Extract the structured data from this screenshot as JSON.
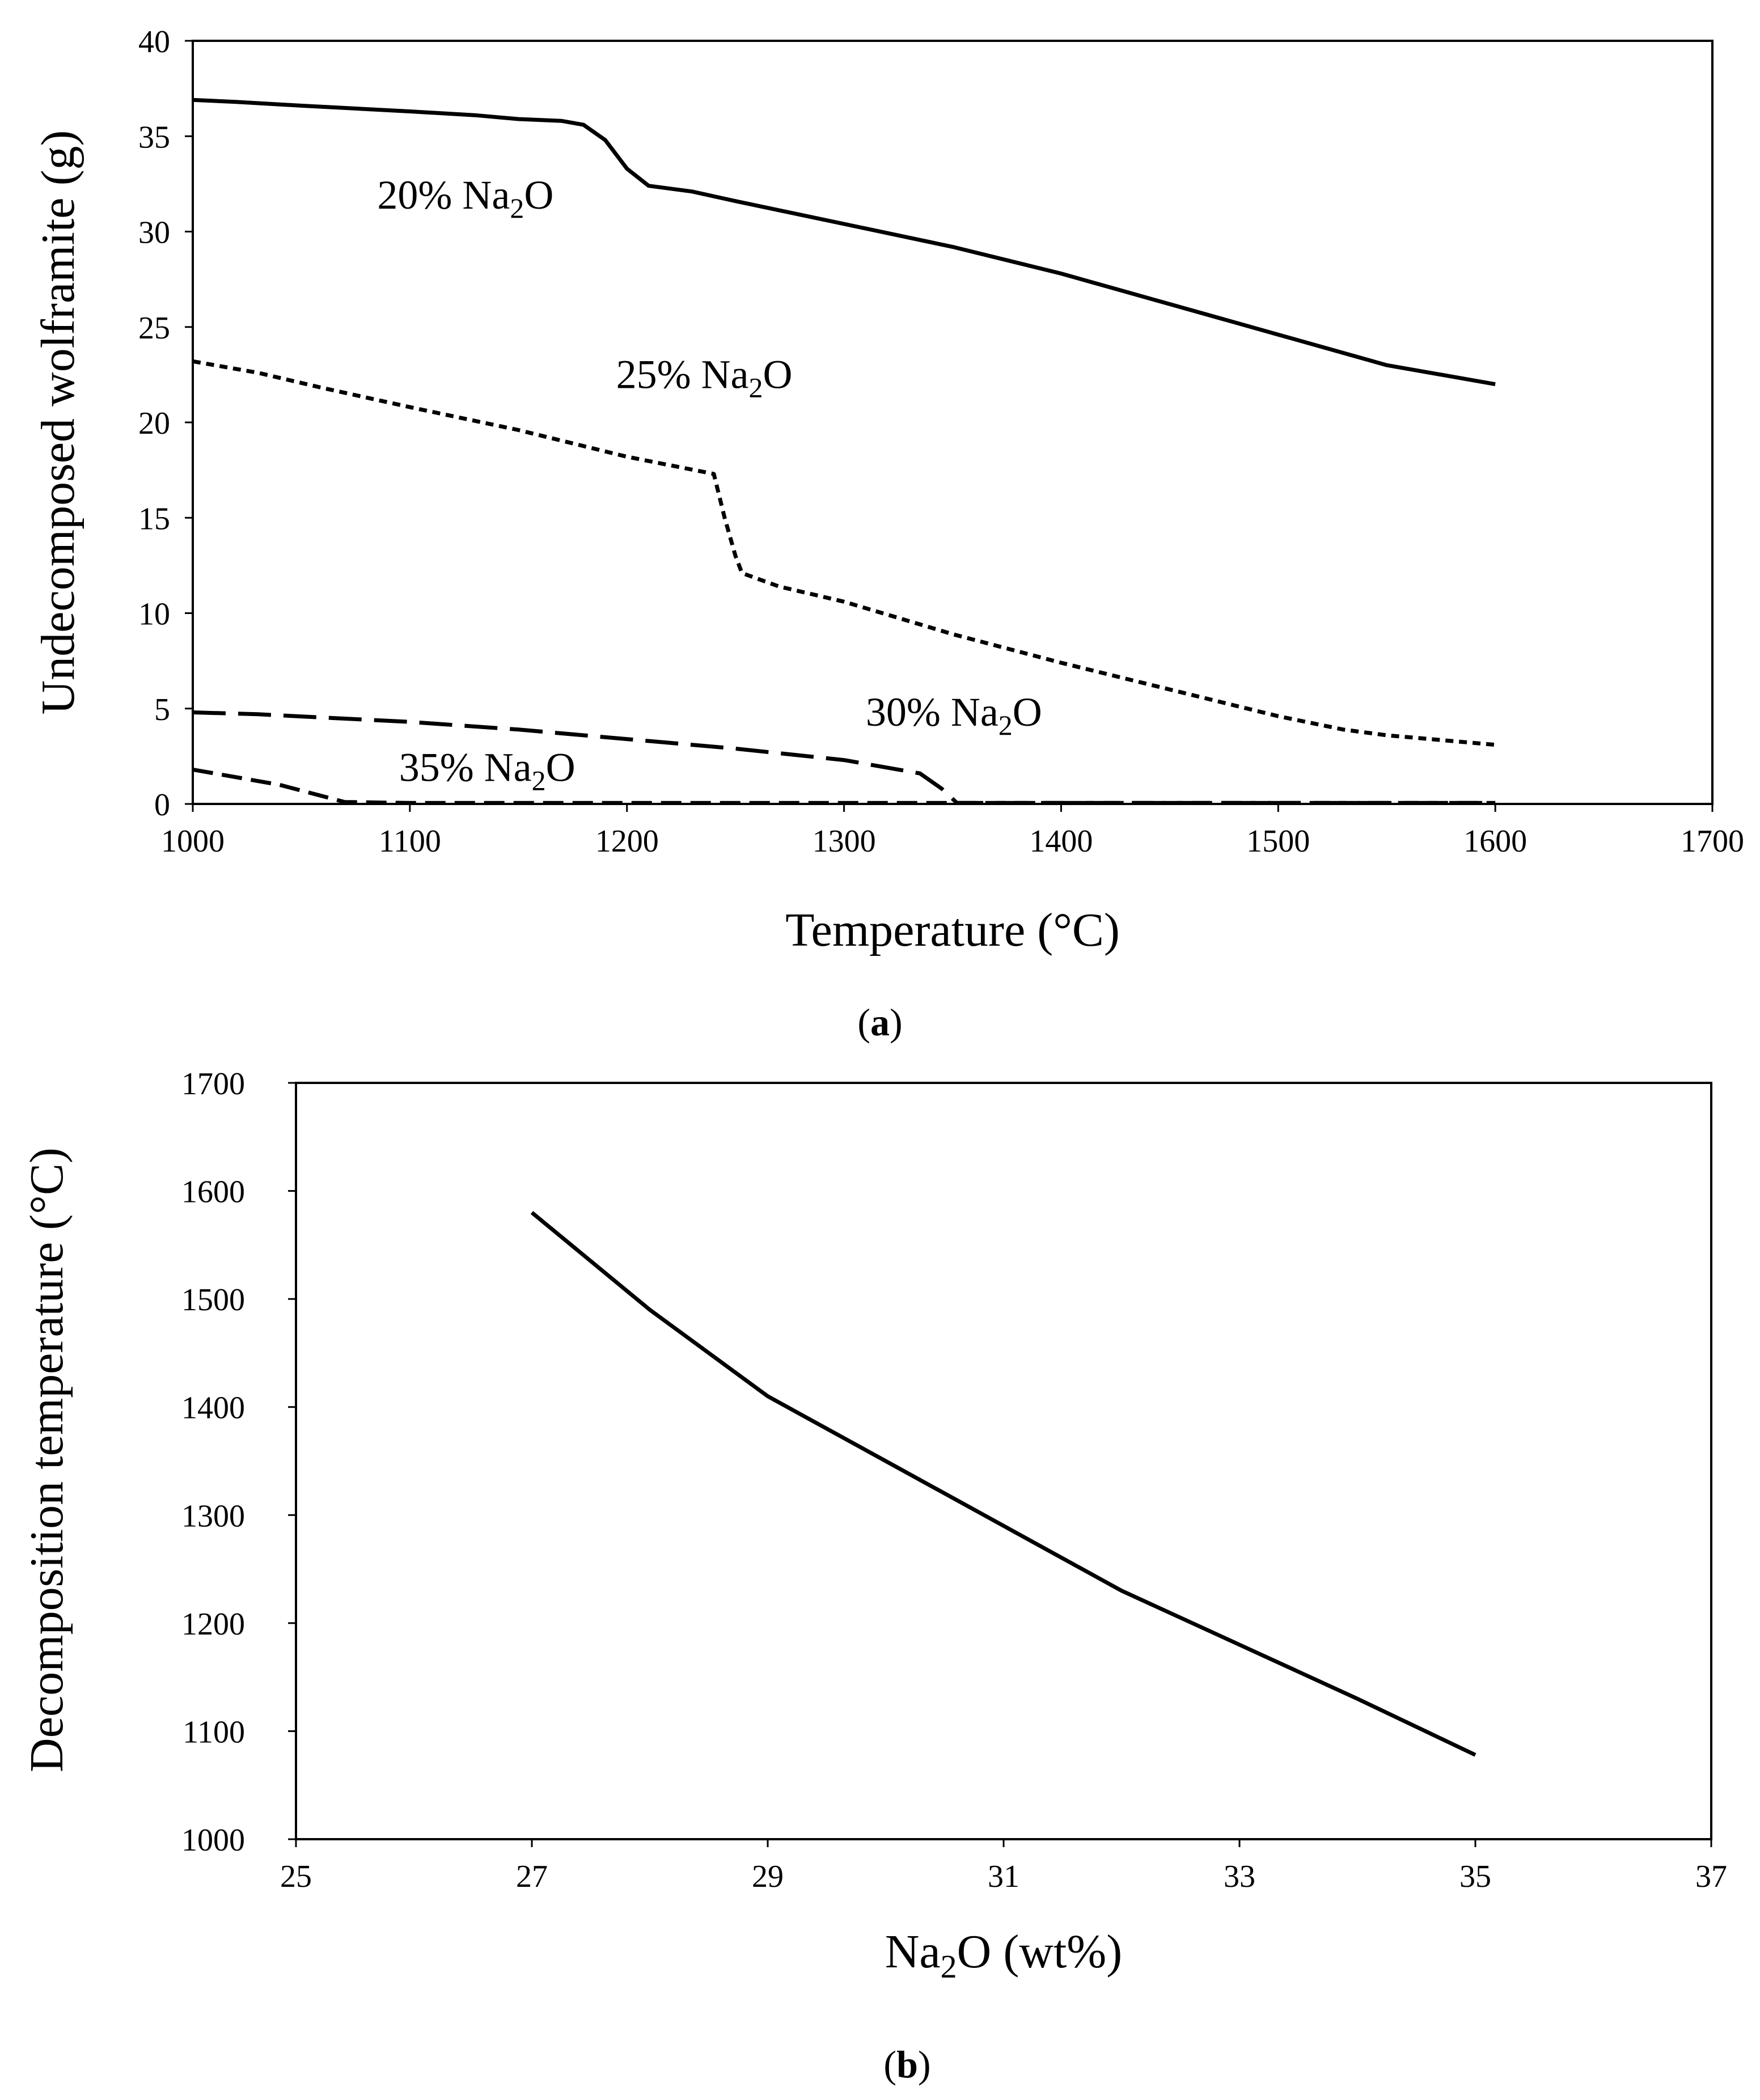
{
  "chart_data": [
    {
      "type": "line",
      "panel": "(a)",
      "panel_letter": "a",
      "title": "",
      "xlabel": "Temperature (°C)",
      "ylabel": "Undecomposed wolframite (g)",
      "xlim": [
        1000,
        1700
      ],
      "ylim": [
        0,
        40
      ],
      "xticks": [
        1000,
        1100,
        1200,
        1300,
        1400,
        1500,
        1600,
        1700
      ],
      "yticks": [
        0,
        5,
        10,
        15,
        20,
        25,
        30,
        35,
        40
      ],
      "grid": false,
      "series": [
        {
          "name": "20% Na2O",
          "label_main": "20% Na",
          "label_sub": "2",
          "label_end": "O",
          "label_at": [
            1085,
            31.2
          ],
          "style": "solid",
          "x": [
            1000,
            1020,
            1050,
            1100,
            1130,
            1150,
            1170,
            1180,
            1190,
            1200,
            1210,
            1230,
            1250,
            1300,
            1350,
            1400,
            1450,
            1500,
            1550,
            1580,
            1600
          ],
          "y": [
            36.9,
            36.8,
            36.6,
            36.3,
            36.1,
            35.9,
            35.8,
            35.6,
            34.8,
            33.3,
            32.4,
            32.1,
            31.6,
            30.4,
            29.2,
            27.8,
            26.2,
            24.6,
            23.0,
            22.4,
            22.0
          ]
        },
        {
          "name": "25% Na2O",
          "label_main": "25% Na",
          "label_sub": "2",
          "label_end": "O",
          "label_at": [
            1195,
            21.8
          ],
          "style": "short-dash",
          "x": [
            1000,
            1030,
            1060,
            1100,
            1150,
            1200,
            1240,
            1245,
            1250,
            1253,
            1270,
            1300,
            1350,
            1400,
            1450,
            1500,
            1530,
            1550,
            1600
          ],
          "y": [
            23.2,
            22.6,
            21.8,
            20.8,
            19.6,
            18.2,
            17.3,
            15.0,
            13.0,
            12.1,
            11.4,
            10.6,
            8.9,
            7.4,
            6.0,
            4.6,
            3.9,
            3.6,
            3.1
          ]
        },
        {
          "name": "30% Na2O",
          "label_main": "30% Na",
          "label_sub": "2",
          "label_end": "O",
          "label_at": [
            1310,
            4.1
          ],
          "style": "long-dash",
          "x": [
            1000,
            1030,
            1100,
            1150,
            1200,
            1250,
            1300,
            1335,
            1345,
            1352,
            1400,
            1500,
            1600
          ],
          "y": [
            4.8,
            4.7,
            4.3,
            3.9,
            3.4,
            2.9,
            2.3,
            1.6,
            0.8,
            0.05,
            0.05,
            0.05,
            0.05
          ],
          "y_extra": []
        },
        {
          "name": "35% Na2O",
          "label_main": "35% Na",
          "label_sub": "2",
          "label_end": "O",
          "label_at": [
            1095,
            1.2
          ],
          "style": "medium-dash",
          "x": [
            1000,
            1040,
            1070,
            1100,
            1200,
            1300,
            1400,
            1500,
            1600
          ],
          "y": [
            1.8,
            1.0,
            0.1,
            0.05,
            0.05,
            0.05,
            0.05,
            0.05,
            0.05
          ]
        }
      ]
    },
    {
      "type": "line",
      "panel": "(b)",
      "panel_letter": "b",
      "title": "",
      "xlabel_main": "Na",
      "xlabel_sub": "2",
      "xlabel_end": "O (wt%)",
      "ylabel": "Decomposition temperature (°C)",
      "xlim": [
        25,
        37
      ],
      "ylim": [
        1000,
        1700
      ],
      "xticks": [
        25,
        27,
        29,
        31,
        33,
        35,
        37
      ],
      "yticks": [
        1000,
        1100,
        1200,
        1300,
        1400,
        1500,
        1600,
        1700
      ],
      "grid": false,
      "series": [
        {
          "name": "Decomposition temperature",
          "style": "solid",
          "x": [
            27,
            28,
            29,
            30,
            31,
            32,
            33,
            34,
            35
          ],
          "y": [
            1580,
            1490,
            1410,
            1350,
            1290,
            1230,
            1180,
            1130,
            1078
          ]
        }
      ]
    }
  ]
}
